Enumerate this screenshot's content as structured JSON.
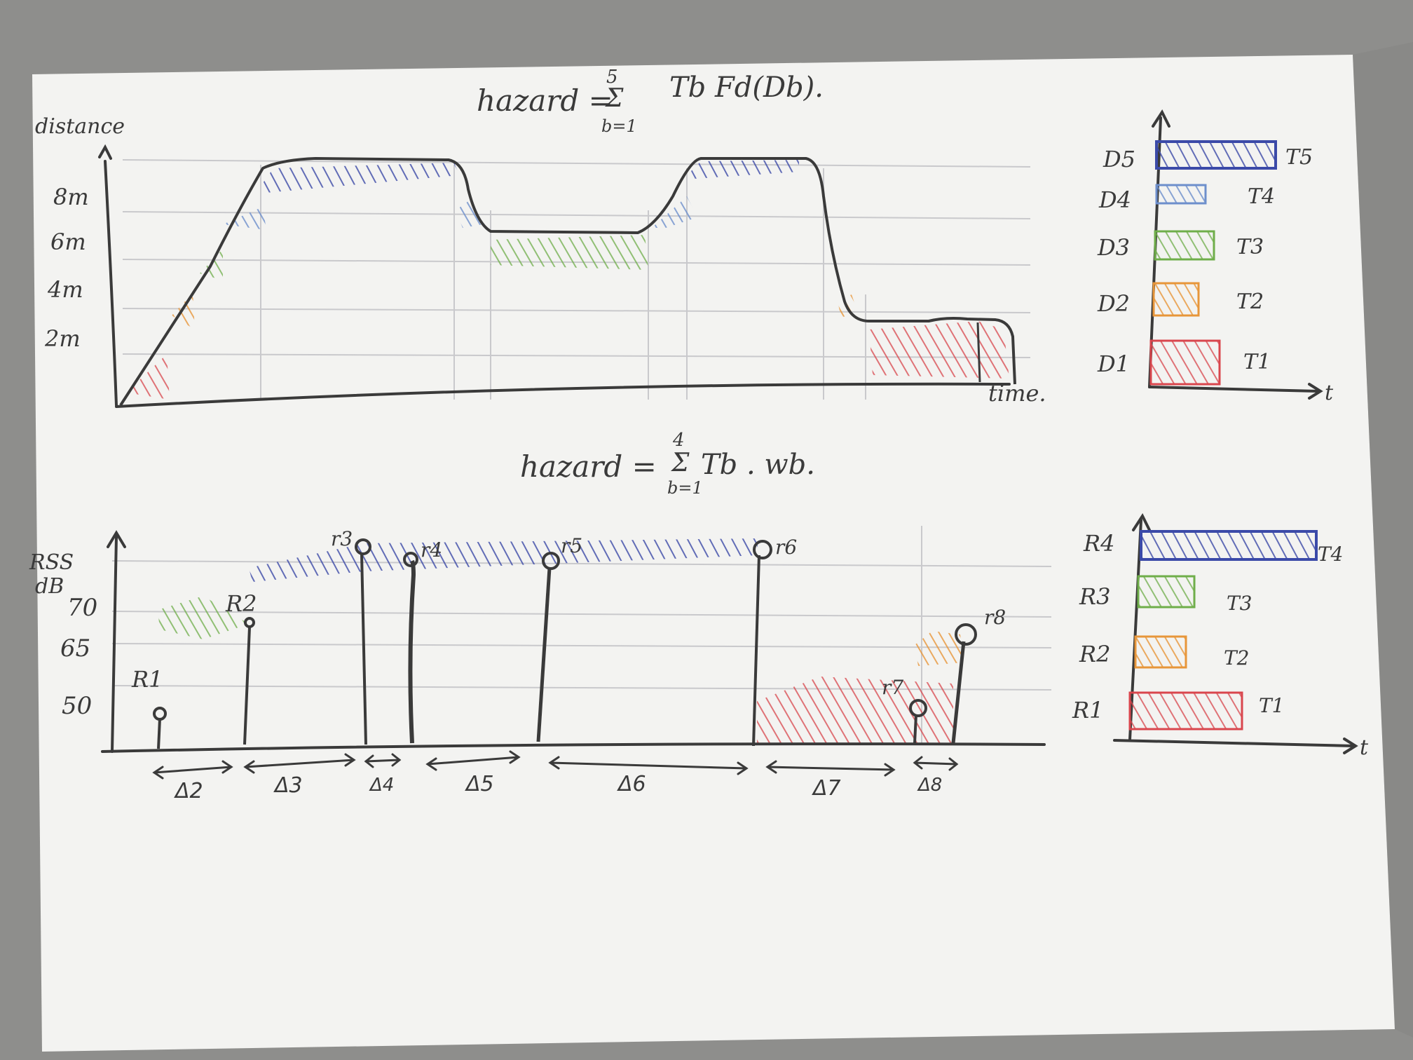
{
  "top": {
    "formula": {
      "lhs": "hazard =",
      "sum_upper": "5",
      "sum_lower": "b=1",
      "term": "Tb Fd(Db)."
    },
    "y_label": "distance",
    "x_label": "time.",
    "ticks": [
      "8m",
      "6m",
      "4m",
      "2m"
    ],
    "legend": {
      "rows": [
        {
          "d": "D5",
          "t": "T5",
          "color": "#3b4aa8"
        },
        {
          "d": "D4",
          "t": "T4",
          "color": "#6d8fcc"
        },
        {
          "d": "D3",
          "t": "T3",
          "color": "#6fae4a"
        },
        {
          "d": "D2",
          "t": "T2",
          "color": "#e7963a"
        },
        {
          "d": "D1",
          "t": "T1",
          "color": "#d9464d"
        }
      ],
      "axis_label": "t"
    }
  },
  "bottom": {
    "formula": {
      "lhs": "hazard =",
      "sum_upper": "4",
      "sum_lower": "b=1",
      "term": "Tb . wb."
    },
    "y_label_1": "RSS",
    "y_label_2": "dB",
    "ticks": [
      "70",
      "65",
      "50"
    ],
    "readings": [
      "R1",
      "R2",
      "r3",
      "r4",
      "r5",
      "r6",
      "r7",
      "r8"
    ],
    "intervals": [
      "Δ2",
      "Δ3",
      "Δ4",
      "Δ5",
      "Δ6",
      "Δ7",
      "Δ8"
    ],
    "legend": {
      "rows": [
        {
          "r": "R4",
          "t": "T4",
          "color": "#3b4aa8"
        },
        {
          "r": "R3",
          "t": "T3",
          "color": "#6fae4a"
        },
        {
          "r": "R2",
          "t": "T2",
          "color": "#e7963a"
        },
        {
          "r": "R1",
          "t": "T1",
          "color": "#d9464d"
        }
      ],
      "axis_label": "t"
    }
  }
}
